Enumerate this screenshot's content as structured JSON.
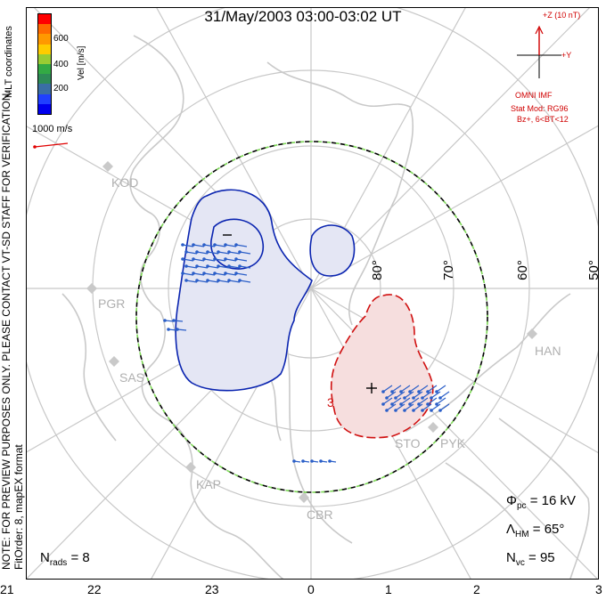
{
  "title": "31/May/2003 03:00-03:02 UT",
  "side_note": "NOTE: FOR PREVIEW PURPOSES ONLY. PLEASE CONTACT VT-SD STAFF FOR VERIFICATION.\nFitOrder: 8, mapEX format",
  "mlt_coords_label": "MLT coordinates",
  "colorbar": {
    "label": "Vel [m/s]",
    "ticks": [
      "600",
      "400",
      "200"
    ],
    "colors": [
      "#ff0000",
      "#ff6a00",
      "#ff9900",
      "#ffcc00",
      "#99cc33",
      "#33aa44",
      "#2e8b57",
      "#3a6ea5",
      "#2040ff",
      "#0000ee"
    ]
  },
  "vector_scale_label": "1000 m/s",
  "imf": {
    "z_label": "+Z (10 nT)",
    "y_label": "+Y",
    "source": "OMNI IMF",
    "stat_mod": "Stat Mod: RG96",
    "bz_bt": "Bz+, 6<BT<12"
  },
  "mlt_ticks": [
    "21",
    "22",
    "23",
    "0",
    "1",
    "2",
    "3"
  ],
  "lat_labels": [
    "80°",
    "70°",
    "60°",
    "50°"
  ],
  "stations": [
    "KOD",
    "PGR",
    "SAS",
    "KAP",
    "CBR",
    "STO",
    "PYK",
    "HAN"
  ],
  "stats": {
    "phi_pc": "Φpc = 16 kV",
    "lambda_hm": "ΛHM = 65°",
    "n_vc": "Nvc = 95",
    "n_rads": "Nrads = 8"
  },
  "convection": {
    "negative_cell_marker": "–",
    "positive_cell_marker": "+",
    "positive_contour_label": "3"
  },
  "colors": {
    "negative_fill": "#e4e6f4",
    "negative_line": "#0a24b0",
    "positive_fill": "#f6dede",
    "positive_line": "#d01010",
    "vector": "#2a5ec8",
    "land": "#c9c9c9",
    "grid": "#c8c8c8",
    "boundary_dash": "#7ed957",
    "imf_color": "#d00000"
  }
}
